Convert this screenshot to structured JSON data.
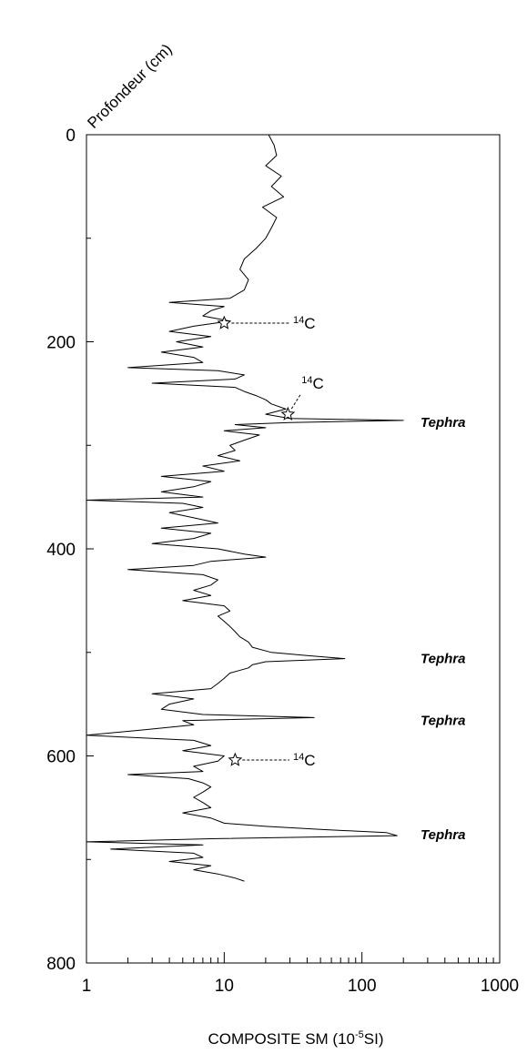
{
  "chart_data": {
    "type": "line",
    "orientation": "depth-profile",
    "title": "",
    "xlabel": "COMPOSITE SM (10",
    "xlabel_sup": "-5",
    "xlabel_tail": "SI)",
    "ylabel": "Profondeur (cm)",
    "x_scale": "log",
    "xlim": [
      1,
      1000
    ],
    "ylim": [
      0,
      800
    ],
    "y_inverted": true,
    "x_ticks": [
      "1",
      "10",
      "100",
      "1000"
    ],
    "y_ticks": [
      "0",
      "200",
      "400",
      "600",
      "800"
    ],
    "grid": false,
    "series": [
      {
        "depth": [
          0,
          10,
          20,
          30,
          40,
          50,
          60,
          70,
          80,
          90,
          100,
          110,
          120,
          130,
          140,
          150,
          158,
          162,
          166,
          170,
          175,
          180,
          185,
          190,
          195,
          200,
          205,
          210,
          215,
          220,
          225,
          228,
          232,
          236,
          240,
          244,
          248,
          252,
          256,
          260,
          265,
          270,
          274,
          276,
          278,
          280,
          283,
          286,
          290,
          295,
          300,
          305,
          310,
          315,
          320,
          325,
          330,
          335,
          340,
          345,
          350,
          353,
          356,
          360,
          365,
          370,
          375,
          380,
          385,
          390,
          395,
          400,
          405,
          408,
          412,
          416,
          420,
          425,
          430,
          435,
          440,
          445,
          450,
          455,
          460,
          465,
          470,
          475,
          480,
          485,
          490,
          495,
          500,
          503,
          506,
          509,
          512,
          515,
          520,
          525,
          530,
          535,
          540,
          545,
          550,
          555,
          560,
          563,
          566,
          570,
          575,
          580,
          585,
          590,
          595,
          600,
          605,
          610,
          615,
          618,
          622,
          626,
          630,
          635,
          640,
          645,
          650,
          655,
          660,
          665,
          668,
          671,
          674,
          677,
          680,
          683,
          686,
          690,
          694,
          698,
          702,
          706,
          710,
          714,
          718,
          721
        ],
        "sm": [
          21,
          23,
          24,
          20,
          26,
          22,
          27,
          19,
          24,
          22,
          20,
          17,
          14,
          13,
          15,
          14,
          11,
          4,
          10,
          8,
          7,
          11,
          6,
          4,
          8,
          4.5,
          7,
          3.5,
          6,
          7,
          2,
          9,
          14,
          12,
          3,
          12,
          14,
          17,
          20,
          22,
          28,
          20,
          30,
          200,
          30,
          12,
          20,
          10,
          18,
          14,
          11,
          12,
          9,
          13,
          7,
          10,
          3.5,
          8,
          6,
          3.5,
          7,
          1,
          5,
          7,
          4,
          6,
          9,
          3.5,
          8,
          6,
          3,
          9,
          14,
          20,
          8,
          6,
          2,
          7,
          9,
          8,
          6,
          8,
          5,
          10,
          11,
          9,
          10,
          11,
          12,
          13,
          15,
          16,
          22,
          40,
          75,
          20,
          16,
          15,
          11,
          10,
          9,
          8,
          3,
          6,
          4,
          3.5,
          7,
          45,
          5,
          6,
          2.5,
          1,
          6,
          8,
          5,
          10,
          9,
          6,
          7,
          2,
          5.5,
          7,
          8,
          7,
          6,
          7,
          8,
          5,
          8,
          10,
          20,
          50,
          150,
          180,
          8,
          1,
          7,
          1.5,
          6,
          7,
          4,
          8,
          6,
          9,
          12,
          14
        ]
      }
    ],
    "annotations": [
      {
        "label": "Tephra",
        "depth": 277
      },
      {
        "label": "Tephra",
        "depth": 505
      },
      {
        "label": "Tephra",
        "depth": 565
      },
      {
        "label": "Tephra",
        "depth": 675
      }
    ],
    "radiocarbon": [
      {
        "label_sup": "14",
        "label_main": "C",
        "depth": 182,
        "sm": 10
      },
      {
        "label_sup": "14",
        "label_main": "C",
        "depth": 270,
        "sm": 29
      },
      {
        "label_sup": "14",
        "label_main": "C",
        "depth": 604,
        "sm": 12
      }
    ]
  }
}
